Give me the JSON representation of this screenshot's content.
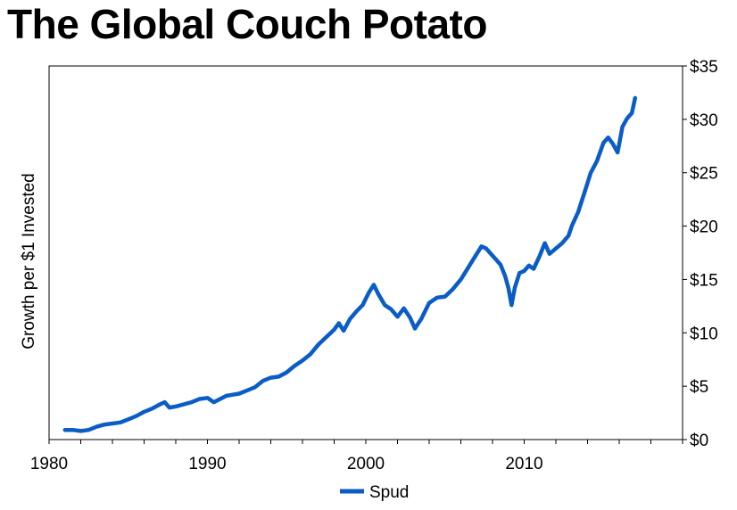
{
  "page_title": "The Global Couch Potato",
  "chart_data": {
    "type": "line",
    "title": "The Global Couch Potato",
    "xlabel": "",
    "ylabel": "Growth per $1 Invested",
    "xlim": [
      1980,
      2020
    ],
    "ylim": [
      0,
      35
    ],
    "x_ticks": [
      1980,
      1990,
      2000,
      2010
    ],
    "x_tick_labels": [
      "1980",
      "1990",
      "2000",
      "2010"
    ],
    "y_ticks": [
      0,
      5,
      10,
      15,
      20,
      25,
      30,
      35
    ],
    "y_tick_labels": [
      "$0",
      "$5",
      "$10",
      "$15",
      "$20",
      "$25",
      "$30",
      "$35"
    ],
    "y_axis_side": "right",
    "grid": false,
    "legend_position": "bottom-center",
    "series": [
      {
        "name": "Spud",
        "color": "#0A5CC6",
        "x": [
          1981.0,
          1981.5,
          1982.0,
          1982.5,
          1983.0,
          1983.5,
          1984.0,
          1984.5,
          1985.0,
          1985.5,
          1986.0,
          1986.5,
          1987.0,
          1987.3,
          1987.6,
          1988.0,
          1988.5,
          1989.0,
          1989.5,
          1990.0,
          1990.4,
          1990.8,
          1991.2,
          1991.6,
          1992.0,
          1992.5,
          1993.0,
          1993.5,
          1994.0,
          1994.5,
          1995.0,
          1995.5,
          1996.0,
          1996.5,
          1997.0,
          1997.5,
          1998.0,
          1998.3,
          1998.6,
          1999.0,
          1999.4,
          1999.8,
          2000.2,
          2000.5,
          2000.8,
          2001.2,
          2001.6,
          2002.0,
          2002.4,
          2002.8,
          2003.1,
          2003.5,
          2004.0,
          2004.5,
          2005.0,
          2005.5,
          2006.0,
          2006.5,
          2007.0,
          2007.3,
          2007.6,
          2007.9,
          2008.2,
          2008.5,
          2008.8,
          2009.0,
          2009.2,
          2009.4,
          2009.7,
          2010.0,
          2010.3,
          2010.6,
          2011.0,
          2011.3,
          2011.6,
          2012.0,
          2012.4,
          2012.8,
          2013.0,
          2013.4,
          2013.8,
          2014.2,
          2014.6,
          2015.0,
          2015.3,
          2015.6,
          2015.9,
          2016.2,
          2016.5,
          2016.8,
          2017.0
        ],
        "values": [
          0.9,
          0.9,
          0.8,
          0.9,
          1.2,
          1.4,
          1.5,
          1.6,
          1.9,
          2.2,
          2.6,
          2.9,
          3.3,
          3.5,
          3.0,
          3.1,
          3.3,
          3.5,
          3.8,
          3.9,
          3.5,
          3.8,
          4.1,
          4.2,
          4.3,
          4.6,
          4.9,
          5.5,
          5.8,
          5.9,
          6.3,
          6.9,
          7.4,
          8.0,
          8.9,
          9.6,
          10.3,
          10.9,
          10.2,
          11.3,
          12.0,
          12.6,
          13.8,
          14.5,
          13.6,
          12.6,
          12.2,
          11.5,
          12.3,
          11.4,
          10.4,
          11.3,
          12.8,
          13.3,
          13.4,
          14.1,
          15.0,
          16.2,
          17.4,
          18.1,
          17.9,
          17.4,
          16.9,
          16.4,
          15.3,
          14.2,
          12.6,
          14.2,
          15.6,
          15.8,
          16.3,
          16.0,
          17.3,
          18.4,
          17.4,
          17.9,
          18.4,
          19.1,
          20.0,
          21.3,
          23.1,
          25.0,
          26.1,
          27.8,
          28.3,
          27.7,
          26.9,
          29.3,
          30.1,
          30.6,
          32.0
        ]
      }
    ]
  }
}
